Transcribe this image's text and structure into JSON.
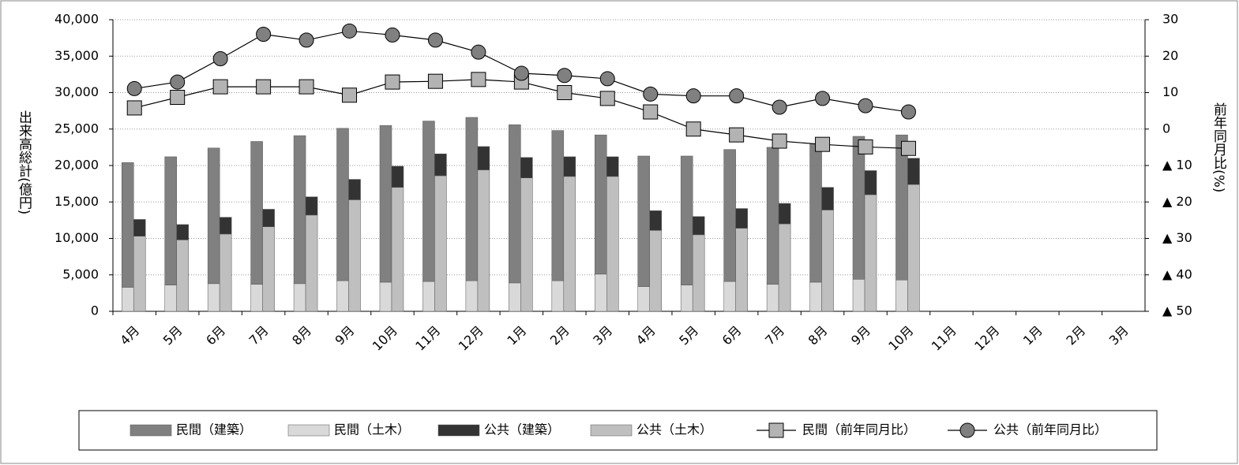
{
  "chart_data": {
    "type": "bar-line",
    "y_label": "出来高総計(億円)",
    "y2_label": "前年同月比(%)",
    "categories": [
      "4月",
      "5月",
      "6月",
      "7月",
      "8月",
      "9月",
      "10月",
      "11月",
      "12月",
      "1月",
      "2月",
      "3月",
      "4月",
      "5月",
      "6月",
      "7月",
      "8月",
      "9月",
      "10月",
      "11月",
      "12月",
      "1月",
      "2月",
      "3月"
    ],
    "ylim": [
      0,
      40000
    ],
    "yticks": [
      0,
      {
        "value": 5000,
        "label": "5,000"
      },
      {
        "value": 10000,
        "label": "10,000"
      },
      {
        "value": 15000,
        "label": "15,000"
      },
      {
        "value": 20000,
        "label": "20,000"
      },
      {
        "value": 25000,
        "label": "25,000"
      },
      {
        "value": 30000,
        "label": "30,000"
      },
      {
        "value": 35000,
        "label": "35,000"
      },
      {
        "value": 40000,
        "label": "40,000"
      }
    ],
    "y2lim": [
      -50,
      30
    ],
    "y2ticks": [
      30,
      20,
      10,
      0,
      {
        "value": -10,
        "label": "▲ 10"
      },
      {
        "value": -20,
        "label": "▲ 20"
      },
      {
        "value": -30,
        "label": "▲ 30"
      },
      {
        "value": -40,
        "label": "▲ 40"
      },
      {
        "value": -50,
        "label": "▲ 50"
      }
    ],
    "grid": true,
    "legend": "bottom",
    "series": [
      {
        "name": "民間（建築）",
        "type": "bar",
        "stack": "民間",
        "color": "#808080",
        "values": [
          17100,
          17600,
          18600,
          19600,
          20300,
          20900,
          21500,
          22000,
          22400,
          21700,
          20600,
          19100,
          17900,
          17700,
          18100,
          18800,
          19000,
          19600,
          19900,
          null,
          null,
          null,
          null,
          null
        ]
      },
      {
        "name": "民間（土木）",
        "type": "bar",
        "stack": "民間",
        "color": "#d9d9d9",
        "values": [
          3300,
          3600,
          3800,
          3700,
          3800,
          4200,
          4000,
          4100,
          4200,
          3900,
          4200,
          5100,
          3400,
          3600,
          4100,
          3700,
          4000,
          4400,
          4300,
          null,
          null,
          null,
          null,
          null
        ]
      },
      {
        "name": "公共（建築）",
        "type": "bar",
        "stack": "公共",
        "color": "#333333",
        "values": [
          2300,
          2100,
          2300,
          2400,
          2500,
          2800,
          2900,
          3000,
          3200,
          2800,
          2700,
          2700,
          2700,
          2500,
          2700,
          2800,
          3100,
          3300,
          3600,
          null,
          null,
          null,
          null,
          null
        ]
      },
      {
        "name": "公共（土木）",
        "type": "bar",
        "stack": "公共",
        "color": "#bfbfbf",
        "values": [
          10300,
          9800,
          10600,
          11600,
          13200,
          15300,
          17000,
          18600,
          19400,
          18300,
          18500,
          18500,
          11100,
          10500,
          11400,
          12000,
          13900,
          16000,
          17400,
          null,
          null,
          null,
          null,
          null
        ]
      },
      {
        "name": "民間（前年同月比）",
        "type": "line",
        "marker": "square",
        "axis": "y2",
        "color": "#b3b3b3",
        "values": [
          5.8,
          8.7,
          11.6,
          11.6,
          11.6,
          9.3,
          12.9,
          13.1,
          13.6,
          12.9,
          10,
          8.4,
          4.7,
          0,
          -1.6,
          -3.3,
          -4.2,
          -4.9,
          -5.3,
          null,
          null,
          null,
          null,
          null
        ]
      },
      {
        "name": "公共（前年同月比）",
        "type": "line",
        "marker": "circle",
        "axis": "y2",
        "color": "#808080",
        "values": [
          11.1,
          12.9,
          19.3,
          26,
          24.4,
          26.9,
          25.8,
          24.4,
          21.1,
          15.3,
          14.7,
          13.8,
          9.6,
          9.1,
          9.1,
          6,
          8.4,
          6.4,
          4.7,
          null,
          null,
          null,
          null,
          null
        ]
      }
    ]
  }
}
